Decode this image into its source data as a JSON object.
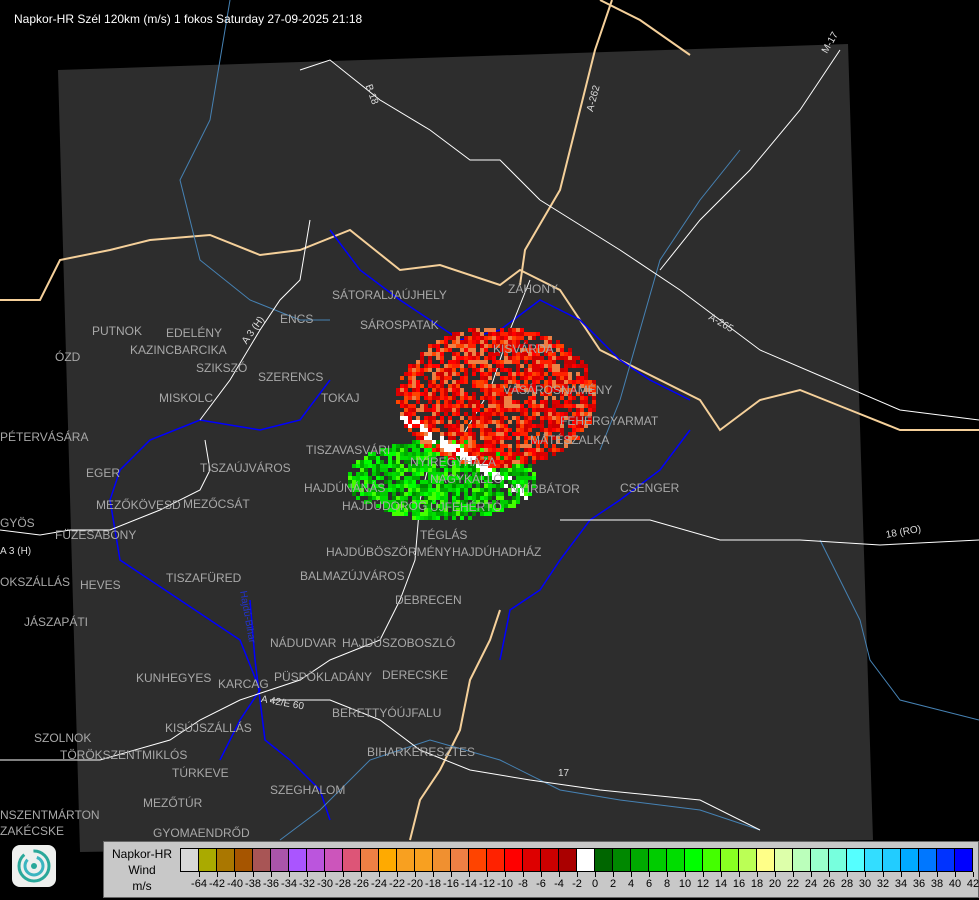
{
  "title": "Napkor-HR Szél 120km (m/s) 1 fokos Saturday 27-09-2025 21:18",
  "colors": {
    "background": "#000000",
    "radar_area": "#2d2d2d",
    "border": "#f5d09a",
    "river": "#0000ff",
    "minor_river": "#4682b4",
    "road": "#ffffff",
    "city": "#a8a8a8"
  },
  "cities": [
    "SÁTORALJAÚJHELY",
    "ZÁHONY",
    "SÁROSPATAK",
    "KISVÁRDA",
    "PUTNOK",
    "EDELÉNY",
    "KAZINCBARCIKA",
    "ÓZD",
    "ENCS",
    "SZIKSZÓ",
    "SZERENCS",
    "TOKAJ",
    "VÁSÁROSNAMÉNY",
    "MISKOLC",
    "PÉTERVÁSÁRA",
    "MÁTÉSZALKA",
    "FEHÉRGYARMAT",
    "TISZAVASVÁRI",
    "NYÍREGYHÁZA",
    "EGER",
    "TISZAÚJVÁROS",
    "NAGYKÁLLÓ",
    "HAJDÚNÁNÁS",
    "NYÍRBÁTOR",
    "CSENGER",
    "MEZŐKÖVESD",
    "MEZŐCSÁT",
    "HAJDÚDOROG",
    "GYÖS",
    "FÜZESABONY",
    "HAJDÚBÖSZÖRMÉNY",
    "ÚJFEHÉRTÓ",
    "TÉGLÁS",
    "HAJDÚHADHÁZ",
    "BALMAZÚJVÁROS",
    "TISZAFÜRED",
    "JÁSZAPÁTI",
    "HEVES",
    "DEBRECEN",
    "NÁDUDVAR",
    "HAJDÚSZOBOSZLÓ",
    "KUNHEGYES",
    "KARCAG",
    "PÜSPÖKLADÁNY",
    "DERECSKE",
    "BERETTYÓÚJFALU",
    "KISÚJSZÁLLÁS",
    "SZOLNOK",
    "TÖRÖKSZENTMIKLÓS",
    "BIHARKERESZTES",
    "TÚRKEVE",
    "SZEGHALOM",
    "MEZŐTÚR",
    "GYOMAENDRŐD",
    "ZAKÉCSKE",
    "NSZENTMÁRTON",
    "OKSZÁLLÁS"
  ],
  "road_labels": [
    "M-17",
    "A-262",
    "A-265",
    "B 18",
    "A 3 (H)",
    "A 3 (H)",
    "A 42/E 60",
    "18 (RO)",
    "17",
    "Hajdú-Bihar"
  ],
  "legend": {
    "line1": "Napkor-HR",
    "line2": "Wind",
    "unit": "m/s",
    "no_data_color": "#d8d8d8",
    "ticks": [
      "-64",
      "-42",
      "-40",
      "-38",
      "-36",
      "-34",
      "-32",
      "-30",
      "-28",
      "-26",
      "-24",
      "-22",
      "-20",
      "-18",
      "-16",
      "-14",
      "-12",
      "-10",
      "-8",
      "-6",
      "-4",
      "-2",
      "0",
      "2",
      "4",
      "6",
      "8",
      "10",
      "12",
      "14",
      "16",
      "18",
      "20",
      "22",
      "24",
      "26",
      "28",
      "30",
      "32",
      "34",
      "36",
      "38",
      "40",
      "42"
    ],
    "colors": [
      "#aaaa00",
      "#aa7700",
      "#a65500",
      "#a85555",
      "#aa55aa",
      "#aa55ff",
      "#bb55dd",
      "#cc55bb",
      "#dd5577",
      "#ee8044",
      "#ffaa00",
      "#f8a020",
      "#f8a020",
      "#f09030",
      "#ee8044",
      "#ff4400",
      "#ff2200",
      "#ff0000",
      "#dd0000",
      "#cc0000",
      "#aa0000",
      "#ffffff",
      "#006600",
      "#008800",
      "#00aa00",
      "#00cc00",
      "#00dd00",
      "#00ff00",
      "#44ff00",
      "#88ff22",
      "#bbff55",
      "#ffff88",
      "#ddffaa",
      "#bbffbb",
      "#99ffcc",
      "#77ffdd",
      "#55ffff",
      "#33ddff",
      "#22ccff",
      "#00aaff",
      "#0077ff",
      "#0033ff",
      "#0000ff"
    ]
  }
}
